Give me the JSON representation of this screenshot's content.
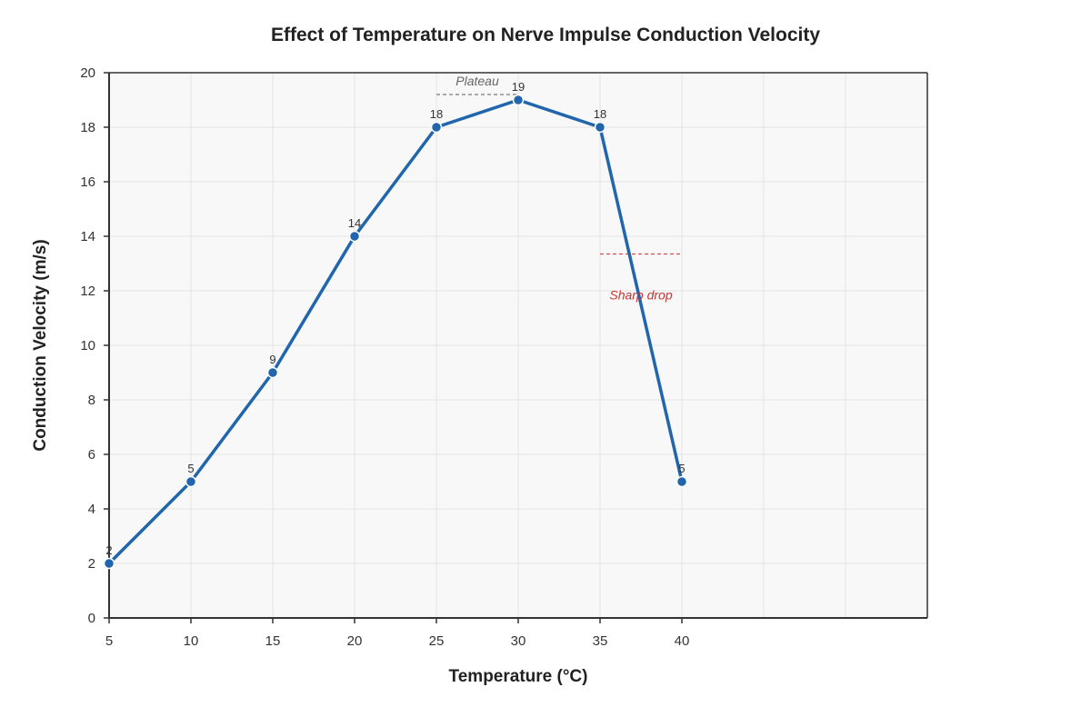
{
  "chart_data": {
    "type": "line",
    "title": "Effect of Temperature on Nerve Impulse Conduction Velocity",
    "xlabel": "Temperature (°C)",
    "ylabel": "Conduction Velocity (m/s)",
    "x": [
      5,
      10,
      15,
      20,
      25,
      30,
      35,
      40
    ],
    "series": [
      {
        "values": [
          2,
          5,
          9,
          14,
          18,
          19,
          18,
          5
        ]
      }
    ],
    "xlim": [
      5,
      55
    ],
    "ylim": [
      0,
      20
    ],
    "xticks": [
      5,
      10,
      15,
      20,
      25,
      30,
      35,
      40
    ],
    "yticks": [
      0,
      2,
      4,
      6,
      8,
      10,
      12,
      14,
      16,
      18,
      20
    ],
    "grid": true,
    "annotations": [
      {
        "text": "Plateau",
        "x_start": 25,
        "x_end": 30,
        "y": 19.2,
        "color": "#666666"
      },
      {
        "text": "Sharp drop",
        "x_start": 35,
        "x_end": 40,
        "y": 13.35,
        "color": "#cc3333"
      }
    ],
    "colors": {
      "line": "#2166ac",
      "plot_bg": "#f8f8f8",
      "grid": "#e3e3e3",
      "axis": "#333333"
    }
  }
}
